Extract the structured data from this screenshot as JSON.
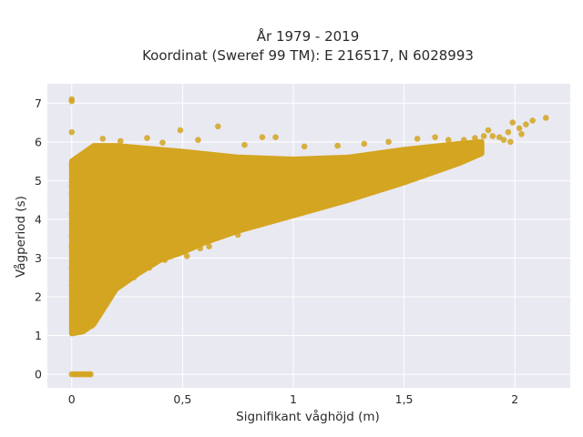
{
  "chart_data": {
    "type": "scatter",
    "title_lines": [
      "År 1979 - 2019",
      "Koordinat (Sweref 99 TM): E 216517, N 6028993"
    ],
    "xlabel": "Signifikant våghöjd (m)",
    "ylabel": "Vågperiod (s)",
    "xlim": [
      -0.11,
      2.25
    ],
    "ylim": [
      -0.35,
      7.5
    ],
    "x_ticks": [
      {
        "value": 0,
        "label": "0"
      },
      {
        "value": 0.5,
        "label": "0,5"
      },
      {
        "value": 1,
        "label": "1"
      },
      {
        "value": 1.5,
        "label": "1,5"
      },
      {
        "value": 2,
        "label": "2"
      }
    ],
    "y_ticks": [
      {
        "value": 0,
        "label": "0"
      },
      {
        "value": 1,
        "label": "1"
      },
      {
        "value": 2,
        "label": "2"
      },
      {
        "value": 3,
        "label": "3"
      },
      {
        "value": 4,
        "label": "4"
      },
      {
        "value": 5,
        "label": "5"
      },
      {
        "value": 6,
        "label": "6"
      },
      {
        "value": 7,
        "label": "7"
      }
    ],
    "grid": true,
    "colors": {
      "marker": "#d4a520",
      "plot_bg": "#e9e9f2",
      "grid": "#ffffff"
    },
    "dense_region": {
      "x_range": [
        0.0,
        1.85
      ],
      "upper_y": [
        [
          0.0,
          5.5
        ],
        [
          0.1,
          5.9
        ],
        [
          0.2,
          5.9
        ],
        [
          0.3,
          5.85
        ],
        [
          0.5,
          5.75
        ],
        [
          0.75,
          5.6
        ],
        [
          1.0,
          5.55
        ],
        [
          1.25,
          5.6
        ],
        [
          1.5,
          5.8
        ],
        [
          1.75,
          5.95
        ],
        [
          1.85,
          6.0
        ]
      ],
      "lower_y": [
        [
          0.0,
          1.05
        ],
        [
          0.05,
          1.1
        ],
        [
          0.1,
          1.3
        ],
        [
          0.2,
          2.2
        ],
        [
          0.3,
          2.6
        ],
        [
          0.4,
          2.95
        ],
        [
          0.5,
          3.15
        ],
        [
          0.6,
          3.4
        ],
        [
          0.75,
          3.7
        ],
        [
          1.0,
          4.1
        ],
        [
          1.25,
          4.5
        ],
        [
          1.5,
          4.95
        ],
        [
          1.75,
          5.45
        ],
        [
          1.85,
          5.7
        ]
      ]
    },
    "points": [
      {
        "x": 0.0,
        "y": 7.1
      },
      {
        "x": 0.0,
        "y": 7.05
      },
      {
        "x": 0.0,
        "y": 6.25
      },
      {
        "x": 0.0,
        "y": 5.4
      },
      {
        "x": 0.02,
        "y": 5.35
      },
      {
        "x": 0.0,
        "y": 5.0
      },
      {
        "x": 0.0,
        "y": 4.85
      },
      {
        "x": 0.0,
        "y": 4.65
      },
      {
        "x": 0.0,
        "y": 4.15
      },
      {
        "x": 0.0,
        "y": 3.55
      },
      {
        "x": 0.0,
        "y": 3.3
      },
      {
        "x": 0.0,
        "y": 2.75
      },
      {
        "x": 0.0,
        "y": 2.3
      },
      {
        "x": 0.0,
        "y": 0.0
      },
      {
        "x": 0.01,
        "y": 0.0
      },
      {
        "x": 0.02,
        "y": 0.0
      },
      {
        "x": 0.03,
        "y": 0.0
      },
      {
        "x": 0.04,
        "y": 0.0
      },
      {
        "x": 0.05,
        "y": 0.0
      },
      {
        "x": 0.06,
        "y": 0.0
      },
      {
        "x": 0.07,
        "y": 0.0
      },
      {
        "x": 0.08,
        "y": 0.0
      },
      {
        "x": 0.085,
        "y": 0.0
      },
      {
        "x": 0.49,
        "y": 6.3
      },
      {
        "x": 0.66,
        "y": 6.4
      },
      {
        "x": 0.92,
        "y": 6.12
      },
      {
        "x": 0.86,
        "y": 6.12
      },
      {
        "x": 0.57,
        "y": 6.05
      },
      {
        "x": 0.34,
        "y": 6.1
      },
      {
        "x": 0.14,
        "y": 6.08
      },
      {
        "x": 0.22,
        "y": 6.02
      },
      {
        "x": 0.41,
        "y": 5.98
      },
      {
        "x": 0.78,
        "y": 5.92
      },
      {
        "x": 1.05,
        "y": 5.88
      },
      {
        "x": 1.2,
        "y": 5.9
      },
      {
        "x": 1.32,
        "y": 5.95
      },
      {
        "x": 1.43,
        "y": 6.0
      },
      {
        "x": 1.56,
        "y": 6.08
      },
      {
        "x": 1.64,
        "y": 6.12
      },
      {
        "x": 1.7,
        "y": 6.05
      },
      {
        "x": 1.77,
        "y": 6.05
      },
      {
        "x": 1.82,
        "y": 6.1
      },
      {
        "x": 1.86,
        "y": 6.15
      },
      {
        "x": 1.88,
        "y": 6.3
      },
      {
        "x": 1.9,
        "y": 6.15
      },
      {
        "x": 1.93,
        "y": 6.12
      },
      {
        "x": 1.95,
        "y": 6.05
      },
      {
        "x": 1.97,
        "y": 6.25
      },
      {
        "x": 1.99,
        "y": 6.5
      },
      {
        "x": 2.02,
        "y": 6.35
      },
      {
        "x": 2.05,
        "y": 6.45
      },
      {
        "x": 2.08,
        "y": 6.55
      },
      {
        "x": 2.14,
        "y": 6.62
      },
      {
        "x": 2.03,
        "y": 6.2
      },
      {
        "x": 1.98,
        "y": 6.0
      },
      {
        "x": 1.59,
        "y": 5.75
      },
      {
        "x": 1.34,
        "y": 5.45
      },
      {
        "x": 1.35,
        "y": 5.2
      },
      {
        "x": 1.3,
        "y": 5.0
      },
      {
        "x": 1.12,
        "y": 4.85
      },
      {
        "x": 1.0,
        "y": 4.6
      },
      {
        "x": 0.9,
        "y": 4.5
      },
      {
        "x": 0.8,
        "y": 4.2
      },
      {
        "x": 0.58,
        "y": 3.25
      },
      {
        "x": 0.52,
        "y": 3.05
      },
      {
        "x": 0.42,
        "y": 2.95
      },
      {
        "x": 0.28,
        "y": 2.5
      },
      {
        "x": 0.18,
        "y": 2.1
      },
      {
        "x": 0.12,
        "y": 1.55
      },
      {
        "x": 0.09,
        "y": 1.25
      },
      {
        "x": 0.75,
        "y": 3.6
      },
      {
        "x": 0.62,
        "y": 3.3
      },
      {
        "x": 0.35,
        "y": 2.75
      }
    ]
  }
}
